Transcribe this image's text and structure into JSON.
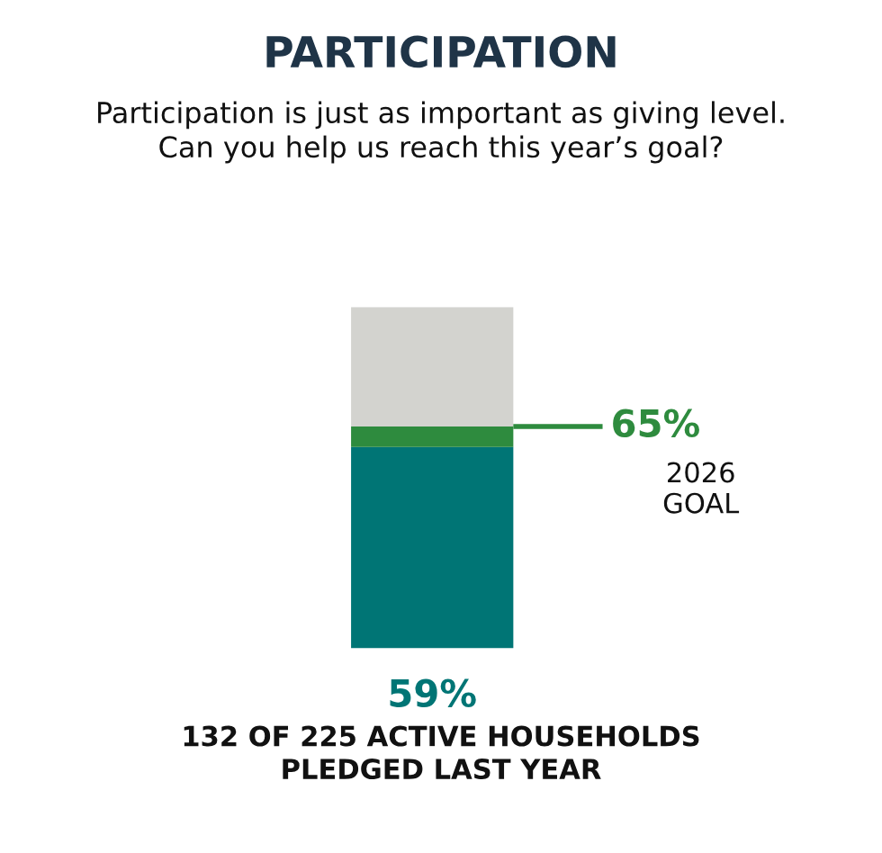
{
  "chart_data": {
    "type": "bar",
    "stacked": true,
    "title": "PARTICIPATION",
    "subtitle": "Participation is just as important as giving level.\nCan you help us reach this year’s goal?",
    "categories": [
      null
    ],
    "series": [
      {
        "color": "#007575",
        "values": [
          59
        ],
        "value_labels": [
          "59%"
        ]
      },
      {
        "color": "#2e8b3e",
        "values": [
          6
        ]
      },
      {
        "color": "#d3d3cf",
        "values": [
          35
        ],
        "value_labels": [
          null
        ]
      }
    ],
    "ylim": [
      0,
      100
    ],
    "grid": false,
    "legend": false,
    "ref_lines": [
      {
        "axis": "y",
        "value": 65,
        "label": "65%",
        "color": "#2e8b3e"
      }
    ],
    "annotations": [
      "2026\nGOAL",
      "132 OF 225 ACTIVE HOUSEHOLDS\nPLEDGED LAST YEAR"
    ]
  }
}
